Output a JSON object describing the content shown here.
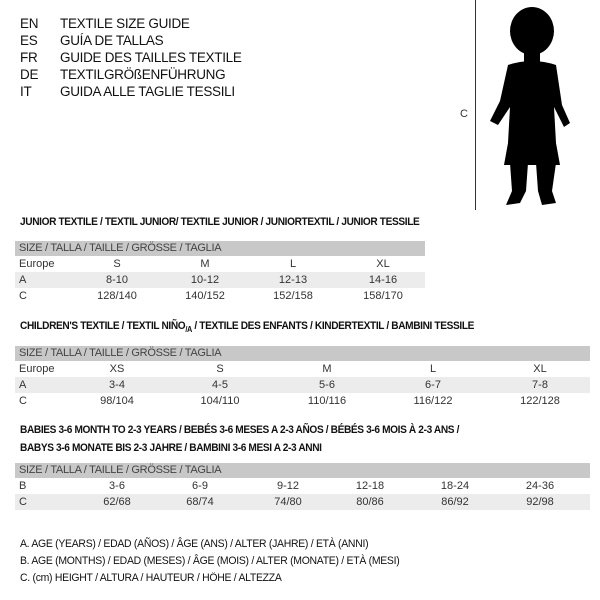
{
  "header": {
    "languages": [
      {
        "code": "EN",
        "title": "TEXTILE SIZE GUIDE"
      },
      {
        "code": "ES",
        "title": "GUÍA DE TALLAS"
      },
      {
        "code": "FR",
        "title": "GUIDE DES TAILLES TEXTILE"
      },
      {
        "code": "DE",
        "title": "TEXTILGRÖßENFÜHRUNG"
      },
      {
        "code": "IT",
        "title": "GUIDA ALLE TAGLIE TESSILI"
      }
    ]
  },
  "figure": {
    "measure_label": "C"
  },
  "junior": {
    "title": "JUNIOR TEXTILE / TEXTIL JUNIOR/ TEXTILE JUNIOR / JUNIORTEXTIL / JUNIOR TESSILE",
    "header": "SIZE / TALLA / TAILLE / GRÖSSE / TAGLIA",
    "rows": [
      {
        "label": "Europe",
        "cells": [
          "S",
          "M",
          "L",
          "XL"
        ]
      },
      {
        "label": "A",
        "cells": [
          "8-10",
          "10-12",
          "12-13",
          "14-16"
        ]
      },
      {
        "label": "C",
        "cells": [
          "128/140",
          "140/152",
          "152/158",
          "158/170"
        ]
      }
    ]
  },
  "children": {
    "title": "CHILDREN'S TEXTILE / TEXTIL NIÑO",
    "title_sub": "/A",
    "title_rest": " / TEXTILE DES ENFANTS / KINDERTEXTIL / BAMBINI TESSILE",
    "header": "SIZE / TALLA / TAILLE / GRÖSSE / TAGLIA",
    "rows": [
      {
        "label": "Europe",
        "cells": [
          "XS",
          "S",
          "M",
          "L",
          "XL"
        ]
      },
      {
        "label": "A",
        "cells": [
          "3-4",
          "4-5",
          "5-6",
          "6-7",
          "7-8"
        ]
      },
      {
        "label": "C",
        "cells": [
          "98/104",
          "104/110",
          "110/116",
          "116/122",
          "122/128"
        ]
      }
    ]
  },
  "babies": {
    "title_line1": "BABIES 3-6 MONTH TO 2-3 YEARS / BEBÉS 3-6 MESES A 2-3 AÑOS / BÉBÉS 3-6 MOIS À 2-3 ANS /",
    "title_line2": "BABYS 3-6 MONATE BIS 2-3 JAHRE / BAMBINI 3-6 MESI A 2-3 ANNI",
    "header": "SIZE / TALLA / TAILLE / GRÖSSE / TAGLIA",
    "rows": [
      {
        "label": "B",
        "cells": [
          "3-6",
          "6-9",
          "9-12",
          "12-18",
          "18-24",
          "24-36"
        ]
      },
      {
        "label": "C",
        "cells": [
          "62/68",
          "68/74",
          "74/80",
          "80/86",
          "86/92",
          "92/98"
        ]
      }
    ]
  },
  "legend": [
    "A. AGE (YEARS) / EDAD (AÑOS) / ÂGE (ANS) / ALTER (JAHRE) / ETÀ (ANNI)",
    "B. AGE (MONTHS) / EDAD (MESES) / ÂGE (MOIS) / ALTER (MONATE) / ETÀ (MESI)",
    "C. (cm) HEIGHT / ALTURA / HAUTEUR / HÖHE / ALTEZZA"
  ]
}
